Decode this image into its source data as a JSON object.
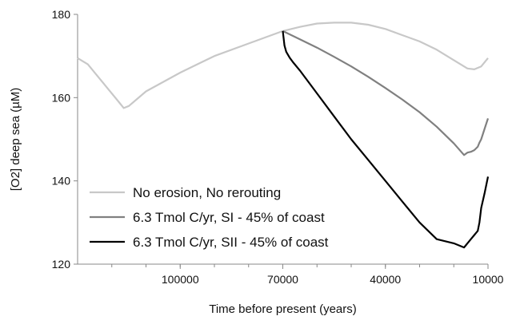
{
  "chart_data": {
    "type": "line",
    "title": "",
    "xlabel": "Time before present (years)",
    "ylabel": "[O2] deep sea (µM)",
    "x_reversed": true,
    "xlim": [
      130000,
      10000
    ],
    "ylim": [
      120,
      180
    ],
    "xticks": [
      100000,
      70000,
      40000,
      10000
    ],
    "xtick_labels": [
      "100000",
      "70000",
      "40000",
      "10000"
    ],
    "yticks": [
      120,
      140,
      160,
      180
    ],
    "ytick_labels": [
      "120",
      "140",
      "160",
      "180"
    ],
    "grid": false,
    "legend_position": "lower-left",
    "series": [
      {
        "name": "No erosion, No rerouting",
        "color": "#c8c8c8",
        "x": [
          130000,
          127000,
          124000,
          121000,
          118000,
          116500,
          115000,
          110000,
          100000,
          90000,
          80000,
          70000,
          65000,
          60000,
          55000,
          50000,
          45000,
          40000,
          35000,
          30000,
          25000,
          20000,
          16000,
          14000,
          12000,
          10000
        ],
        "y": [
          169.5,
          168,
          165,
          162,
          159,
          157.5,
          158,
          161.5,
          166,
          170,
          173,
          176,
          177,
          177.8,
          178,
          178,
          177.5,
          176.5,
          175,
          173.5,
          171.5,
          169,
          167,
          166.8,
          167.5,
          169.5
        ]
      },
      {
        "name": "6.3 Tmol C/yr, SI - 45% of coast",
        "color": "#808080",
        "x": [
          70000,
          65000,
          60000,
          55000,
          50000,
          45000,
          40000,
          35000,
          30000,
          25000,
          20000,
          17000,
          16000,
          15000,
          14000,
          13000,
          12500,
          12000,
          11000,
          10000
        ],
        "y": [
          176,
          174,
          172,
          169.8,
          167.5,
          165,
          162.3,
          159.5,
          156.5,
          153,
          149,
          146.2,
          146.8,
          147,
          147.4,
          148.2,
          149.2,
          150,
          152.5,
          155
        ]
      },
      {
        "name": "6.3 Tmol C/yr, SII - 45% of coast",
        "color": "#000000",
        "x": [
          70000,
          69500,
          69000,
          68000,
          67000,
          65000,
          60000,
          55000,
          50000,
          45000,
          40000,
          35000,
          30000,
          25000,
          20000,
          17000,
          16500,
          16000,
          15000,
          14000,
          13500,
          13000,
          12500,
          12000,
          11000,
          10000
        ],
        "y": [
          176,
          172.5,
          171,
          169.6,
          168.5,
          166.5,
          161,
          155.5,
          150,
          145,
          140,
          135,
          130,
          126,
          125,
          124,
          124.5,
          125,
          126,
          127,
          127.5,
          128,
          130,
          133.5,
          137,
          141
        ]
      }
    ]
  }
}
